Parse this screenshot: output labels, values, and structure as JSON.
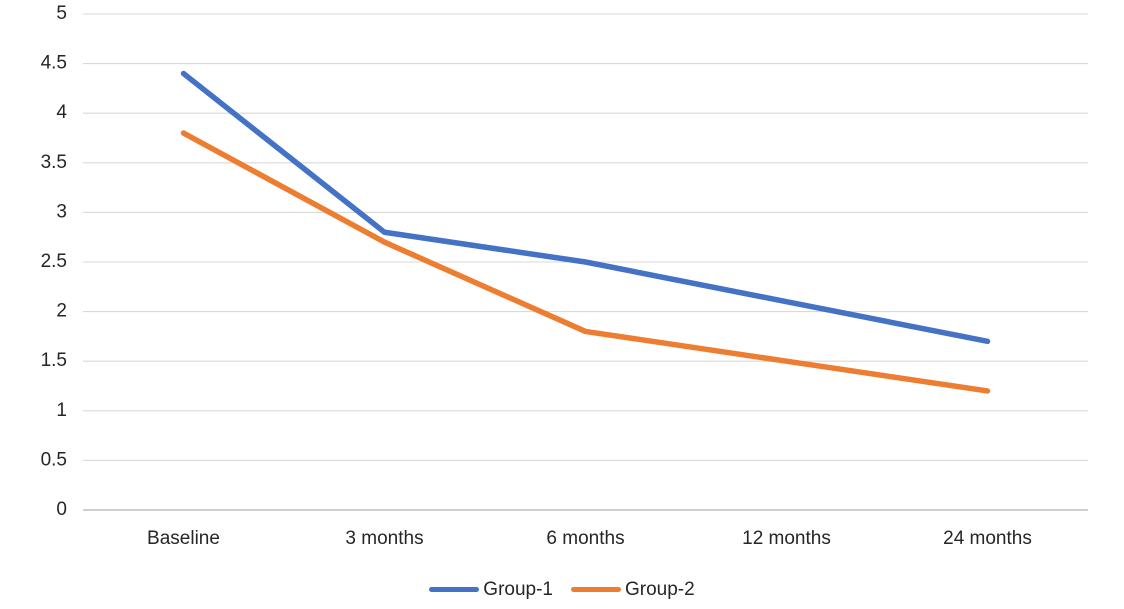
{
  "chart_data": {
    "type": "line",
    "title": "",
    "xlabel": "",
    "ylabel": "",
    "categories": [
      "Baseline",
      "3 months",
      "6 months",
      "12 months",
      "24 months"
    ],
    "series": [
      {
        "name": "Group-1",
        "color": "#4472C4",
        "values": [
          4.4,
          2.8,
          2.5,
          2.1,
          1.7
        ]
      },
      {
        "name": "Group-2",
        "color": "#ED7D31",
        "values": [
          3.8,
          2.7,
          1.8,
          1.5,
          1.2
        ]
      }
    ],
    "ylim": [
      0,
      5
    ],
    "yticks": [
      {
        "value": 0,
        "label": "0"
      },
      {
        "value": 0.5,
        "label": "0.5"
      },
      {
        "value": 1,
        "label": "1"
      },
      {
        "value": 1.5,
        "label": "1.5"
      },
      {
        "value": 2,
        "label": "2"
      },
      {
        "value": 2.5,
        "label": "2.5"
      },
      {
        "value": 3,
        "label": "3"
      },
      {
        "value": 3.5,
        "label": "3.5"
      },
      {
        "value": 4,
        "label": "4"
      },
      {
        "value": 4.5,
        "label": "4.5"
      },
      {
        "value": 5,
        "label": "5"
      }
    ],
    "grid": true,
    "legend_position": "bottom-center"
  },
  "style": {
    "gridline_color": "#D9D9D9",
    "axis_line_color": "#BFBFBF",
    "tick_label_color": "#262626",
    "background_color": "#FFFFFF",
    "line_width": 5.5
  }
}
